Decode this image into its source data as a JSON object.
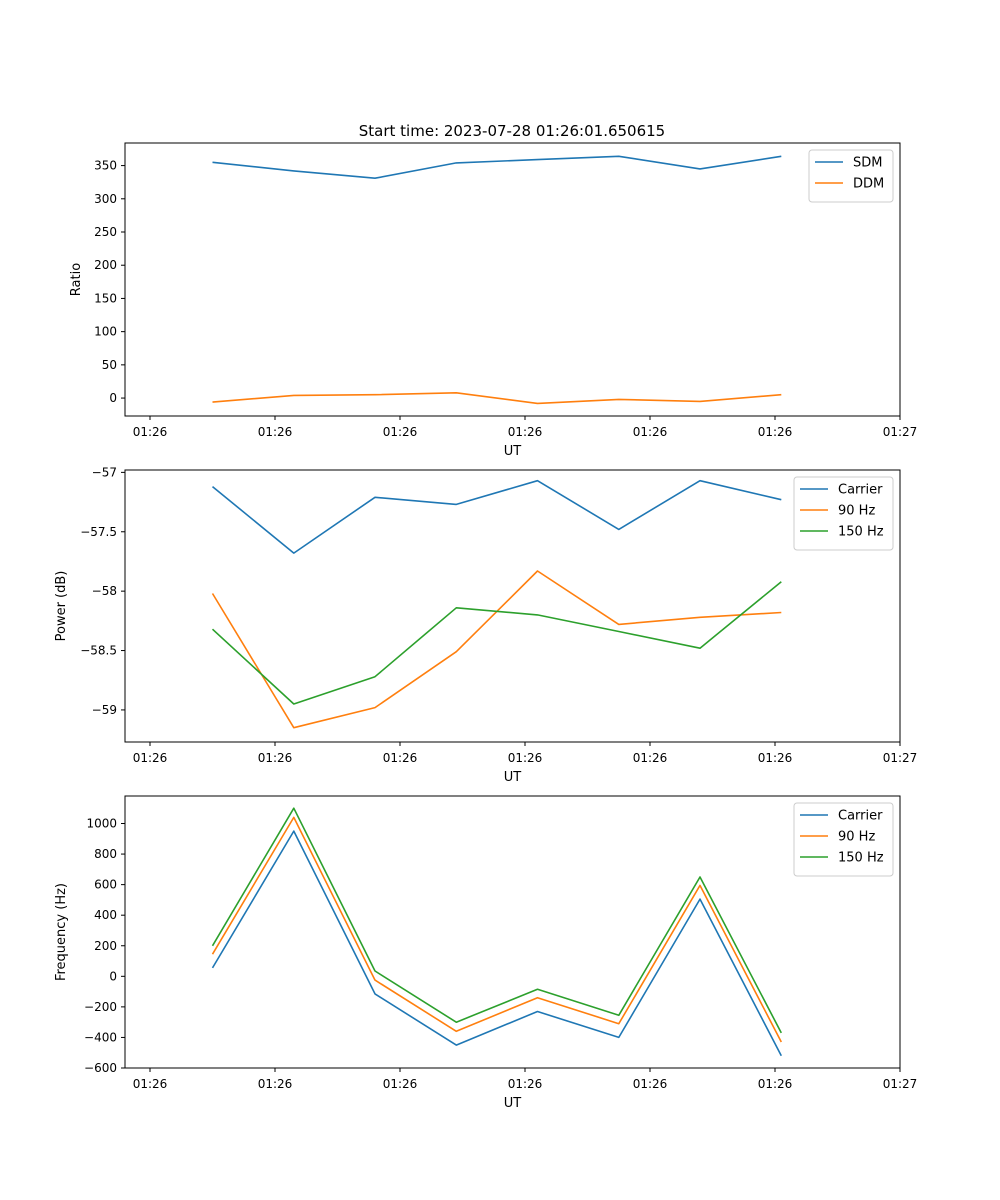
{
  "title": "Start time: 2023-07-28 01:26:01.650615",
  "chart_data": [
    {
      "type": "line",
      "xlabel": "UT",
      "ylabel": "Ratio",
      "xticks": [
        "01:26",
        "01:26",
        "01:26",
        "01:26",
        "01:26",
        "01:26",
        "01:27"
      ],
      "yticks": [
        0,
        50,
        100,
        150,
        200,
        250,
        300,
        350
      ],
      "ylim": [
        -27,
        384
      ],
      "legend_position": "top-right",
      "x": [
        1.5,
        2.15,
        2.8,
        3.45,
        4.1,
        4.75,
        5.4,
        6.05
      ],
      "series": [
        {
          "name": "SDM",
          "color": "#1f77b4",
          "values": [
            355,
            342,
            331,
            354,
            359,
            364,
            345,
            364
          ]
        },
        {
          "name": "DDM",
          "color": "#ff7f0e",
          "values": [
            -6,
            4,
            5,
            8,
            -8,
            -2,
            -5,
            5
          ]
        }
      ]
    },
    {
      "type": "line",
      "xlabel": "UT",
      "ylabel": "Power (dB)",
      "xticks": [
        "01:26",
        "01:26",
        "01:26",
        "01:26",
        "01:26",
        "01:26",
        "01:27"
      ],
      "yticks": [
        -57.0,
        -57.5,
        -58.0,
        -58.5,
        -59.0
      ],
      "ylim": [
        -59.27,
        -56.98
      ],
      "legend_position": "top-right",
      "x": [
        1.5,
        2.15,
        2.8,
        3.45,
        4.1,
        4.75,
        5.4,
        6.05
      ],
      "series": [
        {
          "name": "Carrier",
          "color": "#1f77b4",
          "values": [
            -57.12,
            -57.68,
            -57.21,
            -57.27,
            -57.07,
            -57.48,
            -57.07,
            -57.23
          ]
        },
        {
          "name": "90 Hz",
          "color": "#ff7f0e",
          "values": [
            -58.02,
            -59.15,
            -58.98,
            -58.51,
            -57.83,
            -58.28,
            -58.22,
            -58.18
          ]
        },
        {
          "name": "150 Hz",
          "color": "#2ca02c",
          "values": [
            -58.32,
            -58.95,
            -58.72,
            -58.14,
            -58.2,
            -58.34,
            -58.48,
            -57.92
          ]
        }
      ]
    },
    {
      "type": "line",
      "xlabel": "UT",
      "ylabel": "Frequency (Hz)",
      "xticks": [
        "01:26",
        "01:26",
        "01:26",
        "01:26",
        "01:26",
        "01:26",
        "01:27"
      ],
      "yticks": [
        -600,
        -400,
        -200,
        0,
        200,
        400,
        600,
        800,
        1000
      ],
      "ylim": [
        -600,
        1180
      ],
      "legend_position": "top-right",
      "x": [
        1.5,
        2.15,
        2.8,
        3.45,
        4.1,
        4.75,
        5.4,
        6.05
      ],
      "series": [
        {
          "name": "Carrier",
          "color": "#1f77b4",
          "values": [
            55,
            950,
            -115,
            -450,
            -230,
            -400,
            505,
            -520
          ]
        },
        {
          "name": "90 Hz",
          "color": "#ff7f0e",
          "values": [
            145,
            1040,
            -25,
            -360,
            -140,
            -310,
            595,
            -430
          ]
        },
        {
          "name": "150 Hz",
          "color": "#2ca02c",
          "values": [
            200,
            1100,
            35,
            -300,
            -85,
            -255,
            650,
            -370
          ]
        }
      ]
    }
  ]
}
